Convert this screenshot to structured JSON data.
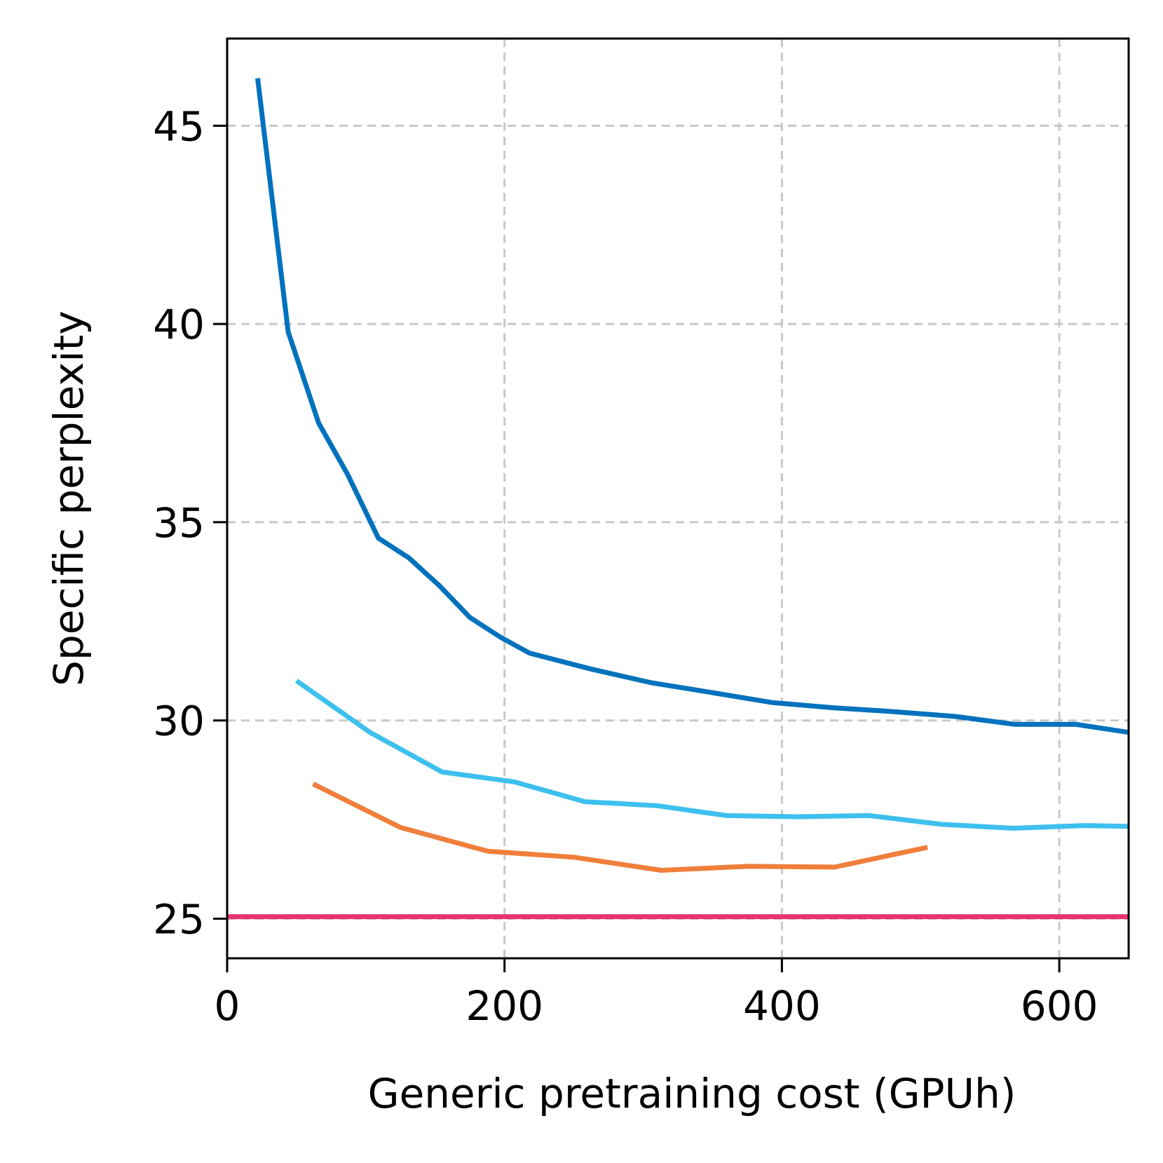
{
  "chart_data": {
    "type": "line",
    "title": "",
    "xlabel": "Generic pretraining cost (GPUh)",
    "ylabel": "Specific perplexity",
    "xlim": [
      0,
      650
    ],
    "ylim": [
      24,
      47.2
    ],
    "xticks": [
      0,
      200,
      400,
      600
    ],
    "yticks": [
      25,
      30,
      35,
      40,
      45
    ],
    "grid": true,
    "series": [
      {
        "name": "dark-blue",
        "color": "#0072bd",
        "x": [
          22,
          44,
          66,
          87,
          109,
          131,
          153,
          175,
          197,
          218,
          262,
          306,
          350,
          393,
          437,
          481,
          525,
          568,
          612,
          650
        ],
        "y": [
          46.2,
          39.8,
          37.5,
          36.2,
          34.6,
          34.1,
          33.4,
          32.6,
          32.1,
          31.7,
          31.3,
          30.95,
          30.7,
          30.45,
          30.32,
          30.22,
          30.1,
          29.9,
          29.9,
          29.7
        ]
      },
      {
        "name": "light-blue",
        "color": "#3ec0ee",
        "x": [
          50,
          103,
          155,
          207,
          258,
          310,
          360,
          412,
          463,
          515,
          567,
          618,
          650
        ],
        "y": [
          31.0,
          29.7,
          28.7,
          28.45,
          27.95,
          27.85,
          27.6,
          27.57,
          27.6,
          27.38,
          27.28,
          27.35,
          27.33
        ]
      },
      {
        "name": "orange",
        "color": "#f07f3c",
        "x": [
          62,
          125,
          188,
          250,
          313,
          376,
          438,
          505
        ],
        "y": [
          28.4,
          27.3,
          26.7,
          26.55,
          26.22,
          26.32,
          26.3,
          26.8
        ]
      },
      {
        "name": "pink-baseline",
        "color": "#e8336d",
        "x": [
          0,
          650
        ],
        "y": [
          25.05,
          25.05
        ]
      }
    ]
  }
}
